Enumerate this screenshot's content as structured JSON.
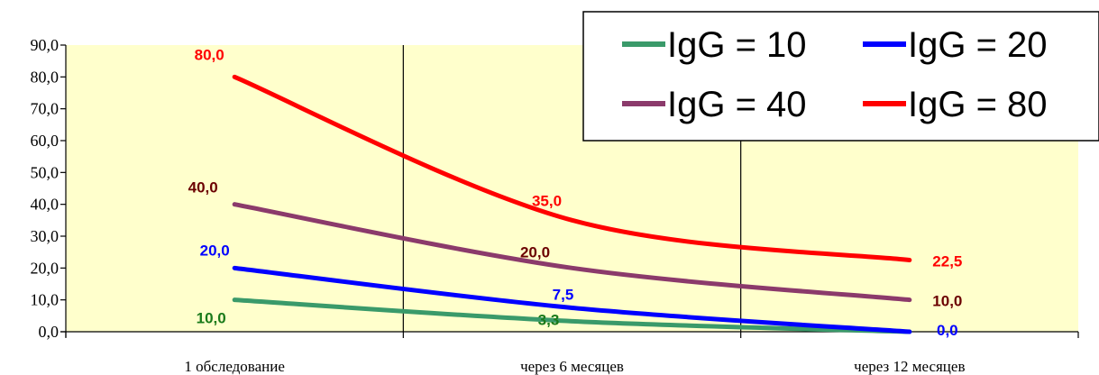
{
  "chart_data": {
    "type": "line",
    "categories": [
      "1 обследование",
      "через 6 месяцев",
      "через 12 месяцев"
    ],
    "ylim": [
      0,
      90
    ],
    "yticks": [
      "0,0",
      "10,0",
      "20,0",
      "30,0",
      "40,0",
      "50,0",
      "60,0",
      "70,0",
      "80,0",
      "90,0"
    ],
    "grid": "vertical",
    "legend_position": "top-right",
    "series": [
      {
        "name": "IgG = 10",
        "color": "#3a9a6a",
        "label_color": "#1a7a1a",
        "values": [
          10.0,
          3.3,
          0.0
        ],
        "labels": [
          "10,0",
          "3,3",
          ""
        ]
      },
      {
        "name": "IgG = 20",
        "color": "#0000ff",
        "label_color": "#0000ff",
        "values": [
          20.0,
          7.5,
          0.0
        ],
        "labels": [
          "20,0",
          "7,5",
          "0,0"
        ]
      },
      {
        "name": "IgG = 40",
        "color": "#8b3a6b",
        "label_color": "#6b0000",
        "values": [
          40.0,
          20.0,
          10.0
        ],
        "labels": [
          "40,0",
          "20,0",
          "10,0"
        ]
      },
      {
        "name": "IgG = 80",
        "color": "#ff0000",
        "label_color": "#ff0000",
        "values": [
          80.0,
          35.0,
          22.5
        ],
        "labels": [
          "80,0",
          "35,0",
          "22,5"
        ]
      }
    ]
  }
}
